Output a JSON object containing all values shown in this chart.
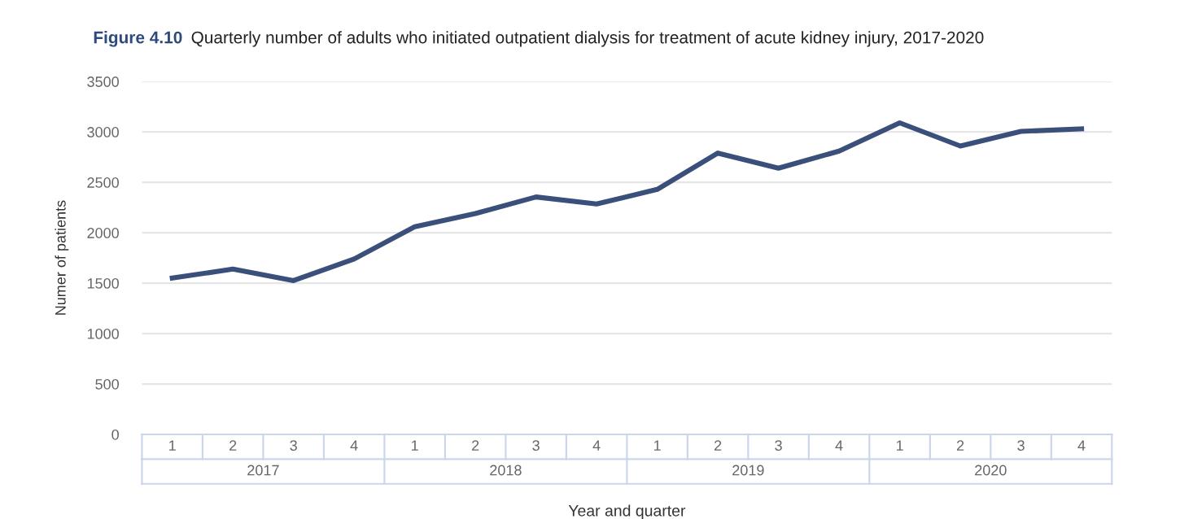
{
  "chart_data": {
    "type": "line",
    "title": "Figure 4.10",
    "subtitle": "Quarterly number of adults who initiated outpatient dialysis for treatment of acute kidney injury, 2017-2020",
    "xlabel": "Year and quarter",
    "ylabel": "Numer of patients",
    "categories": [
      "1",
      "2",
      "3",
      "4",
      "1",
      "2",
      "3",
      "4",
      "1",
      "2",
      "3",
      "4",
      "1",
      "2",
      "3",
      "4"
    ],
    "annotations": [
      "2017",
      "2018",
      "2019",
      "2020"
    ],
    "series": [
      {
        "color": "#3a4f7a",
        "values": [
          1550,
          1640,
          1525,
          1740,
          2060,
          2190,
          2355,
          2285,
          2430,
          2790,
          2640,
          2810,
          3090,
          2860,
          3005,
          3030
        ]
      }
    ],
    "ylim": [
      0,
      3500
    ],
    "yticks": [
      0,
      500,
      1000,
      1500,
      2000,
      2500,
      3000,
      3500
    ],
    "grid": "y",
    "legend": false,
    "marker": "none",
    "line_style": "solid"
  }
}
